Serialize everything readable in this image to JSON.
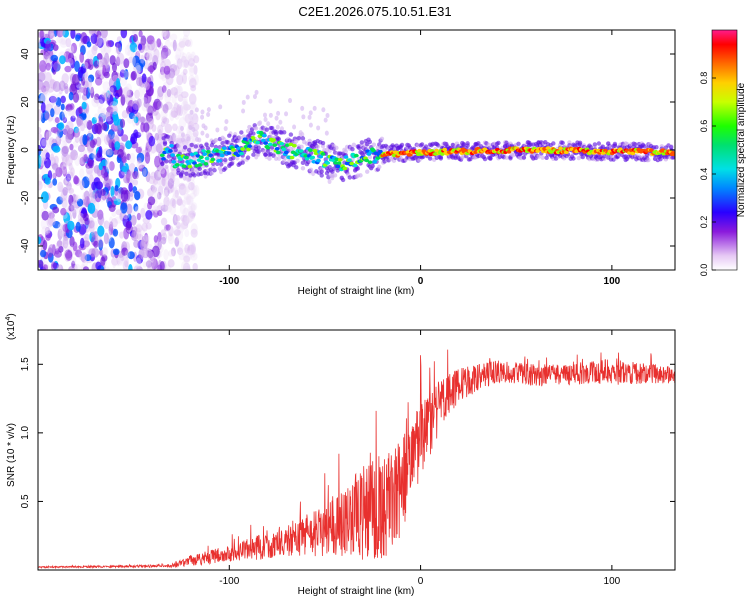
{
  "figure": {
    "title": "C2E1.2026.075.10.51.E31"
  },
  "chart_data": [
    {
      "type": "heatmap",
      "name": "spectrogram",
      "xlabel": "Height of straight line (km)",
      "ylabel": "Frequency (Hz)",
      "xlim": [
        -200,
        133
      ],
      "ylim": [
        -50,
        50
      ],
      "xticks": [
        -100,
        0,
        100
      ],
      "yticks": [
        -40,
        -20,
        0,
        20,
        40
      ],
      "colorbar": {
        "label": "Normalized spectral amplitude",
        "range": [
          0,
          1
        ],
        "ticks": [
          "0.0",
          "0.2",
          "0.4",
          "0.6",
          "0.8"
        ],
        "tick_values": [
          0,
          0.2,
          0.4,
          0.6,
          0.8
        ]
      },
      "ridge": {
        "description_points": [
          {
            "x": -130,
            "y": -5
          },
          {
            "x": -110,
            "y": -3
          },
          {
            "x": -95,
            "y": 0
          },
          {
            "x": -85,
            "y": 5
          },
          {
            "x": -70,
            "y": 0
          },
          {
            "x": -55,
            "y": -3
          },
          {
            "x": -40,
            "y": -6
          },
          {
            "x": -25,
            "y": -2
          },
          {
            "x": 0,
            "y": -1
          },
          {
            "x": 50,
            "y": 0
          },
          {
            "x": 133,
            "y": -1
          }
        ]
      },
      "noise_region_x": [
        -200,
        -125
      ]
    },
    {
      "type": "line",
      "name": "snr",
      "xlabel": "Height of straight line (km)",
      "ylabel": "SNR (10 * v/v)",
      "scale_label": "(x10",
      "scale_exp": "4",
      "scale_close": ")",
      "xlim": [
        -200,
        133
      ],
      "ylim": [
        0,
        1.75
      ],
      "xticks": [
        -100,
        0,
        100
      ],
      "yticks": [
        "0.5",
        "1.0",
        "1.5"
      ],
      "ytick_values": [
        0.5,
        1.0,
        1.5
      ],
      "series": [
        {
          "name": "SNR",
          "color": "#e8302e",
          "envelope": {
            "x": [
              -200,
              -130,
              -120,
              -100,
              -80,
              -60,
              -40,
              -30,
              -20,
              -10,
              0,
              10,
              20,
              40,
              60,
              80,
              100,
              133
            ],
            "mean": [
              0.02,
              0.03,
              0.07,
              0.12,
              0.18,
              0.25,
              0.35,
              0.42,
              0.45,
              0.6,
              0.95,
              1.2,
              1.35,
              1.45,
              1.42,
              1.42,
              1.45,
              1.42
            ],
            "amp": [
              0.005,
              0.01,
              0.04,
              0.06,
              0.1,
              0.15,
              0.25,
              0.35,
              0.4,
              0.35,
              0.3,
              0.2,
              0.12,
              0.08,
              0.08,
              0.08,
              0.1,
              0.06
            ]
          }
        }
      ]
    }
  ]
}
